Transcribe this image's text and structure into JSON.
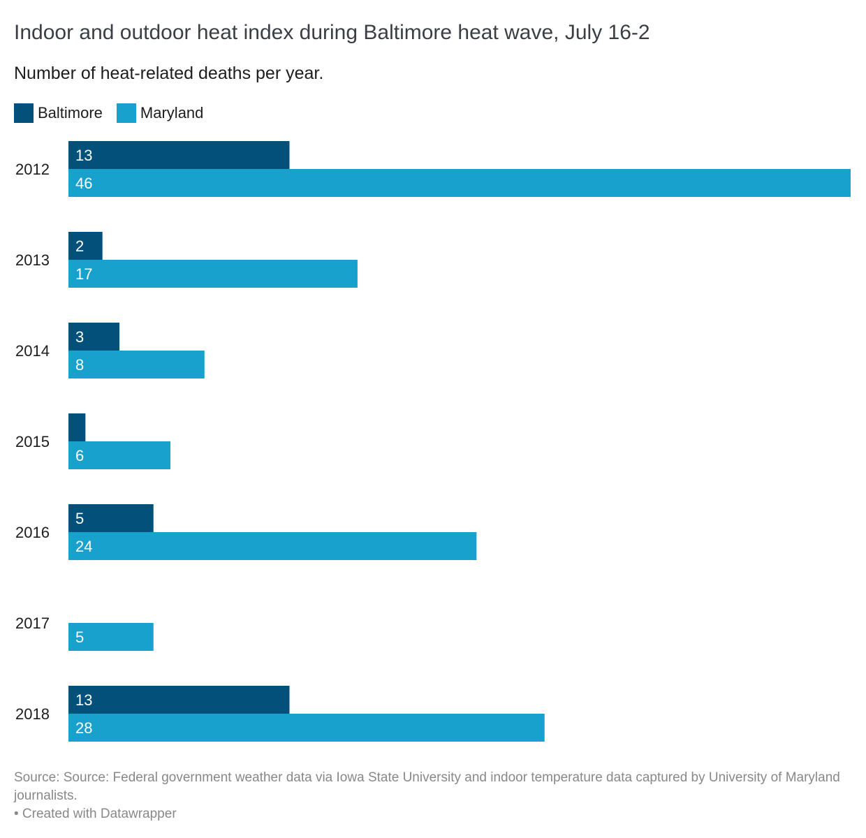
{
  "title": "Indoor and outdoor heat index during Baltimore heat wave, July 16-2",
  "subtitle": "Number of heat-related deaths per year.",
  "footer": {
    "source": "Source: Source: Federal government weather data via Iowa State University and indoor temperature data captured by University of Maryland journalists.",
    "credit": "• Created with Datawrapper"
  },
  "chart_data": {
    "type": "bar",
    "orientation": "horizontal",
    "categories": [
      "2012",
      "2013",
      "2014",
      "2015",
      "2016",
      "2017",
      "2018"
    ],
    "series": [
      {
        "name": "Baltimore",
        "color": "#03507a",
        "values": [
          13,
          2,
          3,
          1,
          5,
          0,
          13
        ],
        "labels": [
          "13",
          "2",
          "3",
          "",
          "5",
          "",
          "13"
        ]
      },
      {
        "name": "Maryland",
        "color": "#18a1cd",
        "values": [
          46,
          17,
          8,
          6,
          24,
          5,
          28
        ],
        "labels": [
          "46",
          "17",
          "8",
          "6",
          "24",
          "5",
          "28"
        ]
      }
    ],
    "xlim": [
      0,
      46
    ],
    "grid": false,
    "legend": "top-left"
  }
}
